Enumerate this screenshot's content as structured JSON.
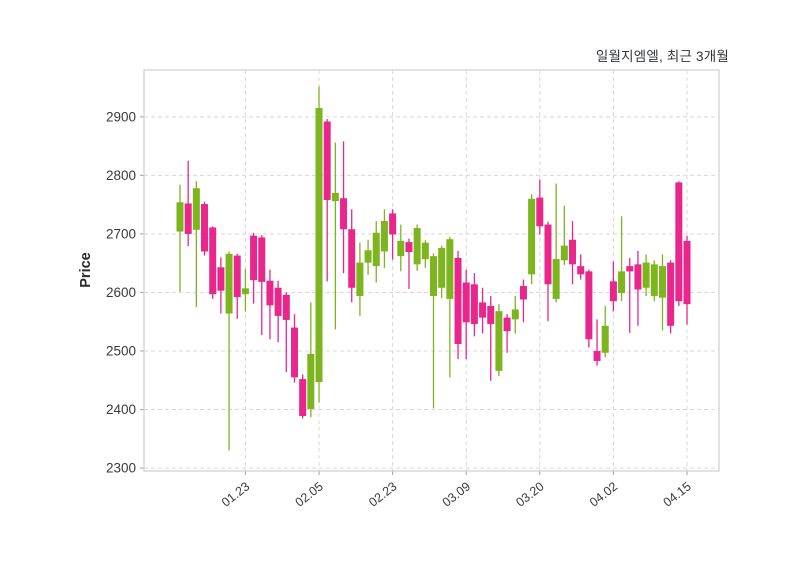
{
  "title": "일월지엠엘, 최근 3개월",
  "chart_data": {
    "type": "candlestick",
    "title": "일월지엠엘, 최근 3개월",
    "xlabel": "",
    "ylabel": "Price",
    "ylim": [
      2295,
      2980
    ],
    "y_ticks": [
      2300,
      2400,
      2500,
      2600,
      2700,
      2800,
      2900
    ],
    "x_tick_labels": [
      "01.23",
      "02.05",
      "02.23",
      "03.09",
      "03.20",
      "04.02",
      "04.15"
    ],
    "x_tick_indices": [
      8,
      17,
      26,
      35,
      44,
      53,
      62
    ],
    "grid": true,
    "grid_style": "dashed",
    "legend_position": "none",
    "colors": {
      "up": "#7cb51e",
      "down": "#e8268c",
      "grid": "#d9d9d9",
      "spine": "#cfcfcf",
      "tick_mark": "#b0b0b0",
      "tick_text": "#3a3a3a",
      "label_text": "#2a2a2a",
      "title_text": "#32343c",
      "background": "#ffffff"
    },
    "ohlc_order": [
      "open",
      "high",
      "low",
      "close"
    ],
    "candles": [
      [
        2704,
        2784,
        2601,
        2754
      ],
      [
        2752,
        2825,
        2679,
        2700
      ],
      [
        2707,
        2790,
        2575,
        2778
      ],
      [
        2751,
        2755,
        2663,
        2670
      ],
      [
        2711,
        2713,
        2589,
        2597
      ],
      [
        2643,
        2660,
        2564,
        2603
      ],
      [
        2564,
        2670,
        2330,
        2666
      ],
      [
        2663,
        2666,
        2555,
        2592
      ],
      [
        2597,
        2640,
        2568,
        2607
      ],
      [
        2697,
        2702,
        2581,
        2621
      ],
      [
        2694,
        2698,
        2527,
        2618
      ],
      [
        2620,
        2639,
        2520,
        2578
      ],
      [
        2608,
        2620,
        2515,
        2560
      ],
      [
        2596,
        2600,
        2464,
        2553
      ],
      [
        2540,
        2563,
        2446,
        2455
      ],
      [
        2452,
        2460,
        2385,
        2389
      ],
      [
        2401,
        2583,
        2387,
        2495
      ],
      [
        2447,
        2952,
        2412,
        2915
      ],
      [
        2892,
        2896,
        2619,
        2758
      ],
      [
        2756,
        2856,
        2537,
        2770
      ],
      [
        2761,
        2858,
        2633,
        2708
      ],
      [
        2708,
        2742,
        2583,
        2608
      ],
      [
        2594,
        2685,
        2560,
        2651
      ],
      [
        2651,
        2690,
        2630,
        2672
      ],
      [
        2645,
        2722,
        2617,
        2702
      ],
      [
        2670,
        2742,
        2642,
        2722
      ],
      [
        2735,
        2742,
        2656,
        2699
      ],
      [
        2662,
        2716,
        2636,
        2688
      ],
      [
        2686,
        2692,
        2606,
        2669
      ],
      [
        2648,
        2716,
        2637,
        2710
      ],
      [
        2657,
        2689,
        2642,
        2685
      ],
      [
        2594,
        2667,
        2402,
        2662
      ],
      [
        2608,
        2680,
        2590,
        2676
      ],
      [
        2589,
        2695,
        2455,
        2691
      ],
      [
        2659,
        2671,
        2486,
        2512
      ],
      [
        2617,
        2639,
        2486,
        2549
      ],
      [
        2614,
        2633,
        2525,
        2546
      ],
      [
        2583,
        2608,
        2530,
        2557
      ],
      [
        2577,
        2594,
        2449,
        2546
      ],
      [
        2466,
        2580,
        2457,
        2568
      ],
      [
        2557,
        2563,
        2497,
        2534
      ],
      [
        2554,
        2594,
        2530,
        2571
      ],
      [
        2611,
        2622,
        2549,
        2588
      ],
      [
        2631,
        2768,
        2614,
        2760
      ],
      [
        2762,
        2793,
        2699,
        2713
      ],
      [
        2716,
        2721,
        2551,
        2614
      ],
      [
        2589,
        2786,
        2583,
        2657
      ],
      [
        2655,
        2748,
        2647,
        2680
      ],
      [
        2690,
        2722,
        2614,
        2648
      ],
      [
        2645,
        2665,
        2622,
        2631
      ],
      [
        2636,
        2639,
        2506,
        2520
      ],
      [
        2500,
        2554,
        2475,
        2483
      ],
      [
        2497,
        2577,
        2489,
        2543
      ],
      [
        2619,
        2653,
        2568,
        2585
      ],
      [
        2599,
        2730,
        2585,
        2636
      ],
      [
        2645,
        2659,
        2531,
        2636
      ],
      [
        2648,
        2671,
        2543,
        2605
      ],
      [
        2608,
        2665,
        2594,
        2651
      ],
      [
        2594,
        2655,
        2585,
        2648
      ],
      [
        2591,
        2665,
        2535,
        2645
      ],
      [
        2651,
        2655,
        2530,
        2543
      ],
      [
        2788,
        2790,
        2577,
        2585
      ],
      [
        2688,
        2697,
        2545,
        2580
      ]
    ]
  }
}
